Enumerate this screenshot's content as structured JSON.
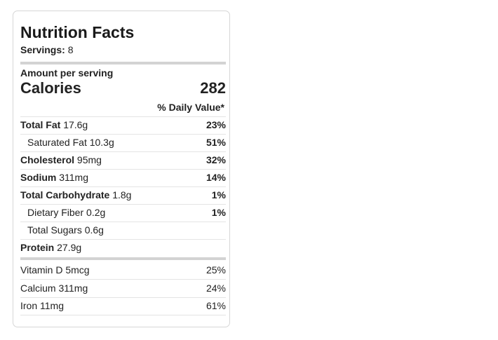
{
  "label": {
    "title": "Nutrition Facts",
    "servings_label": "Servings:",
    "servings_value": "8",
    "amount_per_serving": "Amount per serving",
    "calories_label": "Calories",
    "calories_value": "282",
    "daily_value_header": "% Daily Value*"
  },
  "nutrients": [
    {
      "name": "Total Fat",
      "amount": "17.6g",
      "dv": "23%"
    },
    {
      "name": "Saturated Fat",
      "amount": "10.3g",
      "dv": "51%"
    },
    {
      "name": "Cholesterol",
      "amount": "95mg",
      "dv": "32%"
    },
    {
      "name": "Sodium",
      "amount": "311mg",
      "dv": "14%"
    },
    {
      "name": "Total Carbohydrate",
      "amount": "1.8g",
      "dv": "1%"
    },
    {
      "name": "Dietary Fiber",
      "amount": "0.2g",
      "dv": "1%"
    },
    {
      "name": "Total Sugars",
      "amount": "0.6g",
      "dv": ""
    },
    {
      "name": "Protein",
      "amount": "27.9g",
      "dv": ""
    }
  ],
  "vitamins": [
    {
      "name": "Vitamin D",
      "amount": "5mcg",
      "dv": "25%"
    },
    {
      "name": "Calcium",
      "amount": "311mg",
      "dv": "24%"
    },
    {
      "name": "Iron",
      "amount": "11mg",
      "dv": "61%"
    }
  ],
  "colors": {
    "text": "#222222",
    "rule_thick": "#d3d3d3",
    "rule_thin": "#e4e4e4",
    "card_border": "#d6d6d6"
  }
}
